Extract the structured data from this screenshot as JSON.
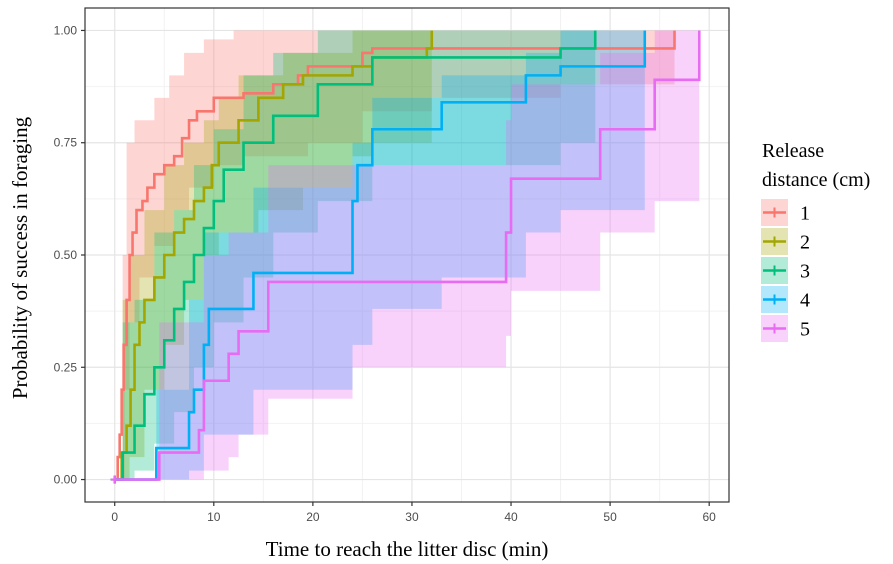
{
  "chart_data": {
    "type": "line",
    "subtype": "kaplan-meier-step-with-confidence-bands",
    "title": "",
    "xlabel": "Time to reach the litter disc (min)",
    "ylabel": "Probability of success in foraging",
    "xlim": [
      -3,
      62
    ],
    "ylim": [
      -0.05,
      1.05
    ],
    "x_ticks": [
      0,
      10,
      20,
      30,
      40,
      50,
      60
    ],
    "y_ticks": [
      0,
      0.25,
      0.5,
      0.75,
      1.0
    ],
    "y_tick_labels": [
      "0.00",
      "0.25",
      "0.50",
      "0.75",
      "1.00"
    ],
    "grid": true,
    "legend": {
      "title_lines": [
        "Release",
        "distance (cm)"
      ],
      "position": "right"
    },
    "series": [
      {
        "name": "1",
        "color": "#F8766D",
        "points": [
          [
            0,
            0
          ],
          [
            0.3,
            0.05
          ],
          [
            0.5,
            0.1
          ],
          [
            0.7,
            0.2
          ],
          [
            0.9,
            0.3
          ],
          [
            1.2,
            0.4
          ],
          [
            1.5,
            0.5
          ],
          [
            1.8,
            0.55
          ],
          [
            2.2,
            0.6
          ],
          [
            2.8,
            0.62
          ],
          [
            3.3,
            0.65
          ],
          [
            4.0,
            0.68
          ],
          [
            5.0,
            0.7
          ],
          [
            6.0,
            0.72
          ],
          [
            6.8,
            0.76
          ],
          [
            7.5,
            0.8
          ],
          [
            8.3,
            0.82
          ],
          [
            10.0,
            0.85
          ],
          [
            13.0,
            0.86
          ],
          [
            16.0,
            0.88
          ],
          [
            18.5,
            0.9
          ],
          [
            19.5,
            0.92
          ],
          [
            25.0,
            0.95
          ],
          [
            26.0,
            0.96
          ],
          [
            32.0,
            0.96
          ],
          [
            56.5,
            1.0
          ]
        ],
        "lower": [
          [
            0,
            0
          ],
          [
            1.0,
            0.2
          ],
          [
            1.5,
            0.35
          ],
          [
            2.5,
            0.45
          ],
          [
            4.0,
            0.52
          ],
          [
            6.0,
            0.6
          ],
          [
            7.5,
            0.65
          ],
          [
            10.0,
            0.7
          ],
          [
            13.0,
            0.72
          ],
          [
            19.5,
            0.75
          ],
          [
            25.0,
            0.82
          ],
          [
            32.0,
            0.85
          ],
          [
            45.0,
            0.88
          ],
          [
            56.5,
            0.9
          ]
        ],
        "upper": [
          [
            0,
            0
          ],
          [
            0.8,
            0.5
          ],
          [
            1.2,
            0.75
          ],
          [
            2.0,
            0.8
          ],
          [
            4.0,
            0.85
          ],
          [
            5.5,
            0.9
          ],
          [
            7.0,
            0.95
          ],
          [
            9.0,
            0.98
          ],
          [
            12.0,
            1.0
          ],
          [
            56.5,
            1.0
          ]
        ]
      },
      {
        "name": "2",
        "color": "#A3A500",
        "points": [
          [
            0,
            0
          ],
          [
            0.7,
            0.06
          ],
          [
            1.2,
            0.12
          ],
          [
            1.6,
            0.2
          ],
          [
            2.0,
            0.3
          ],
          [
            2.5,
            0.35
          ],
          [
            3.0,
            0.4
          ],
          [
            4.0,
            0.45
          ],
          [
            5.0,
            0.5
          ],
          [
            6.0,
            0.55
          ],
          [
            7.0,
            0.58
          ],
          [
            8.0,
            0.62
          ],
          [
            9.0,
            0.65
          ],
          [
            9.8,
            0.7
          ],
          [
            10.5,
            0.75
          ],
          [
            12.5,
            0.8
          ],
          [
            14.5,
            0.85
          ],
          [
            17.0,
            0.88
          ],
          [
            19.0,
            0.9
          ],
          [
            24.0,
            0.92
          ],
          [
            26.0,
            0.94
          ],
          [
            31.5,
            0.96
          ],
          [
            32.0,
            1.0
          ]
        ],
        "lower": [
          [
            0,
            0
          ],
          [
            1.5,
            0.05
          ],
          [
            3.0,
            0.2
          ],
          [
            5.0,
            0.3
          ],
          [
            7.0,
            0.4
          ],
          [
            9.0,
            0.5
          ],
          [
            10.5,
            0.55
          ],
          [
            14.5,
            0.6
          ],
          [
            19.0,
            0.65
          ],
          [
            24.0,
            0.72
          ],
          [
            26.0,
            0.75
          ],
          [
            32.0,
            0.82
          ]
        ],
        "upper": [
          [
            0,
            0
          ],
          [
            0.8,
            0.4
          ],
          [
            1.6,
            0.5
          ],
          [
            3.0,
            0.6
          ],
          [
            5.0,
            0.7
          ],
          [
            7.0,
            0.75
          ],
          [
            9.0,
            0.8
          ],
          [
            10.5,
            0.85
          ],
          [
            12.5,
            0.9
          ],
          [
            17.0,
            0.95
          ],
          [
            24.0,
            1.0
          ],
          [
            32.0,
            1.0
          ]
        ]
      },
      {
        "name": "3",
        "color": "#00BF7D",
        "points": [
          [
            0,
            0
          ],
          [
            0.8,
            0.06
          ],
          [
            2.0,
            0.12
          ],
          [
            3.0,
            0.19
          ],
          [
            4.0,
            0.25
          ],
          [
            5.0,
            0.31
          ],
          [
            6.0,
            0.38
          ],
          [
            7.0,
            0.44
          ],
          [
            8.0,
            0.5
          ],
          [
            9.0,
            0.56
          ],
          [
            10.0,
            0.62
          ],
          [
            11.0,
            0.69
          ],
          [
            13.0,
            0.75
          ],
          [
            16.0,
            0.81
          ],
          [
            20.5,
            0.88
          ],
          [
            26.0,
            0.94
          ],
          [
            45.0,
            0.96
          ],
          [
            48.5,
            1.0
          ]
        ],
        "lower": [
          [
            0,
            0
          ],
          [
            2.0,
            0.02
          ],
          [
            4.0,
            0.08
          ],
          [
            6.0,
            0.15
          ],
          [
            8.0,
            0.25
          ],
          [
            10.0,
            0.35
          ],
          [
            13.0,
            0.45
          ],
          [
            16.0,
            0.55
          ],
          [
            20.5,
            0.62
          ],
          [
            26.0,
            0.7
          ],
          [
            45.0,
            0.75
          ],
          [
            48.5,
            0.8
          ]
        ],
        "upper": [
          [
            0,
            0
          ],
          [
            0.8,
            0.35
          ],
          [
            2.0,
            0.4
          ],
          [
            4.0,
            0.55
          ],
          [
            6.0,
            0.6
          ],
          [
            8.0,
            0.7
          ],
          [
            10.0,
            0.78
          ],
          [
            13.0,
            0.9
          ],
          [
            16.0,
            0.95
          ],
          [
            20.5,
            1.0
          ],
          [
            48.5,
            1.0
          ]
        ]
      },
      {
        "name": "4",
        "color": "#00B0F6",
        "points": [
          [
            0,
            0
          ],
          [
            4.2,
            0.07
          ],
          [
            7.5,
            0.15
          ],
          [
            8.0,
            0.2
          ],
          [
            9.0,
            0.3
          ],
          [
            9.5,
            0.38
          ],
          [
            14.0,
            0.46
          ],
          [
            24.0,
            0.62
          ],
          [
            24.5,
            0.7
          ],
          [
            26.0,
            0.78
          ],
          [
            33.0,
            0.84
          ],
          [
            41.5,
            0.9
          ],
          [
            45.0,
            0.92
          ],
          [
            48.5,
            0.92
          ],
          [
            53.5,
            1.0
          ]
        ],
        "lower": [
          [
            0,
            0
          ],
          [
            4.2,
            0.0
          ],
          [
            7.5,
            0.02
          ],
          [
            9.0,
            0.1
          ],
          [
            14.0,
            0.2
          ],
          [
            24.0,
            0.3
          ],
          [
            26.0,
            0.38
          ],
          [
            33.0,
            0.45
          ],
          [
            41.5,
            0.55
          ],
          [
            45.0,
            0.6
          ],
          [
            53.5,
            0.62
          ]
        ],
        "upper": [
          [
            0,
            0
          ],
          [
            4.2,
            0.2
          ],
          [
            7.5,
            0.4
          ],
          [
            9.0,
            0.55
          ],
          [
            14.0,
            0.65
          ],
          [
            24.0,
            0.75
          ],
          [
            26.0,
            0.85
          ],
          [
            33.0,
            0.9
          ],
          [
            41.5,
            0.95
          ],
          [
            45.0,
            1.0
          ],
          [
            53.5,
            1.0
          ]
        ]
      },
      {
        "name": "5",
        "color": "#E76BF3",
        "points": [
          [
            0,
            0
          ],
          [
            4.5,
            0.06
          ],
          [
            8.5,
            0.11
          ],
          [
            9.0,
            0.22
          ],
          [
            11.5,
            0.28
          ],
          [
            12.5,
            0.33
          ],
          [
            15.5,
            0.44
          ],
          [
            39.5,
            0.55
          ],
          [
            40.0,
            0.67
          ],
          [
            49.0,
            0.78
          ],
          [
            54.5,
            0.89
          ],
          [
            59.0,
            1.0
          ]
        ],
        "lower": [
          [
            0,
            0
          ],
          [
            4.5,
            0.0
          ],
          [
            9.0,
            0.02
          ],
          [
            11.5,
            0.05
          ],
          [
            12.5,
            0.1
          ],
          [
            15.5,
            0.18
          ],
          [
            24.0,
            0.25
          ],
          [
            39.5,
            0.32
          ],
          [
            40.0,
            0.42
          ],
          [
            49.0,
            0.55
          ],
          [
            54.5,
            0.62
          ],
          [
            59.0,
            0.62
          ]
        ],
        "upper": [
          [
            0,
            0
          ],
          [
            4.5,
            0.35
          ],
          [
            9.0,
            0.5
          ],
          [
            11.5,
            0.55
          ],
          [
            15.5,
            0.7
          ],
          [
            39.5,
            0.8
          ],
          [
            40.0,
            0.88
          ],
          [
            49.0,
            0.95
          ],
          [
            54.5,
            1.0
          ],
          [
            59.0,
            1.0
          ]
        ]
      }
    ]
  }
}
